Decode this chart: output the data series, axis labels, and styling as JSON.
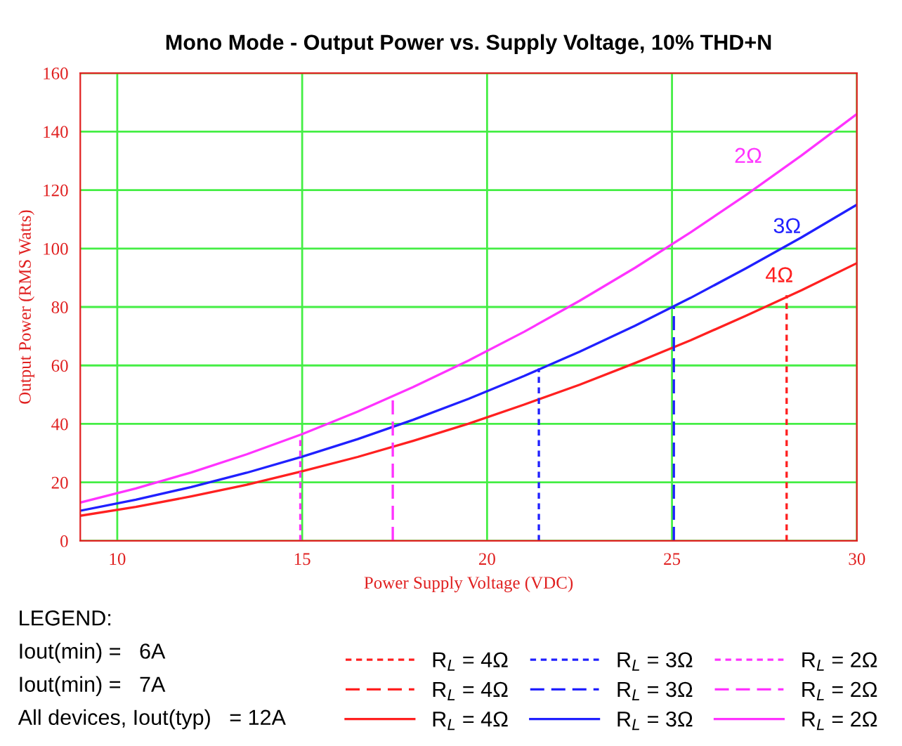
{
  "chart_data": {
    "type": "line",
    "title": "Mono Mode - Output Power vs. Supply Voltage, 10% THD+N",
    "xlabel": "Power Supply Voltage (VDC)",
    "ylabel": "Output Power (RMS Watts)",
    "xlim": [
      9,
      30
    ],
    "xticks": [
      10,
      15,
      20,
      25,
      30
    ],
    "ylim": [
      0,
      160
    ],
    "yticks": [
      0,
      20,
      40,
      60,
      80,
      100,
      120,
      140,
      160
    ],
    "grid": true,
    "legend": "bottom right",
    "marker": "none",
    "series": [
      {
        "name": "R$_{L}$ = 4Ω",
        "color": "#ff2020",
        "line_style": "dotted",
        "x": [
          28.1,
          28.1
        ],
        "values": [
          0,
          84
        ]
      },
      {
        "name": "R$_{L}$ = 4Ω",
        "color": "#ff2020",
        "line_style": "dashed"
      },
      {
        "name": "R$_{L}$ = 4Ω",
        "color": "#ff2020",
        "line_style": "solid",
        "x": [
          9,
          10.5,
          12,
          13.5,
          15,
          16.5,
          18,
          19.5,
          21,
          22.5,
          24,
          25.5,
          27,
          28.5,
          30
        ],
        "values": [
          8.6,
          11.6,
          15.2,
          19.2,
          23.8,
          28.7,
          34.2,
          40.1,
          46.6,
          53.4,
          60.8,
          68.6,
          77,
          85.7,
          95
        ]
      },
      {
        "name": "R$_{L}$ = 3Ω",
        "color": "#2020ff",
        "line_style": "dotted",
        "x": [
          21.4,
          21.4
        ],
        "values": [
          0,
          59
        ]
      },
      {
        "name": "R$_{L}$ = 3Ω",
        "color": "#2020ff",
        "line_style": "dashed",
        "x": [
          25.05,
          25.05
        ],
        "values": [
          0,
          80
        ]
      },
      {
        "name": "R$_{L}$ = 3Ω",
        "color": "#2020ff",
        "line_style": "solid",
        "x": [
          9,
          10.5,
          12,
          13.5,
          15,
          16.5,
          18,
          19.5,
          21,
          22.5,
          24,
          25.5,
          27,
          28.5,
          30
        ],
        "values": [
          10.3,
          14.1,
          18.4,
          23.3,
          28.8,
          34.8,
          41.4,
          48.6,
          56.4,
          64.7,
          73.6,
          83.1,
          93.2,
          103.8,
          115
        ]
      },
      {
        "name": "R$_{L}$ = 2Ω",
        "color": "#ff33ff",
        "line_style": "dotted",
        "x": [
          14.95,
          14.95
        ],
        "values": [
          0,
          36
        ]
      },
      {
        "name": "R$_{L}$ = 2Ω",
        "color": "#ff33ff",
        "line_style": "dashed",
        "x": [
          17.45,
          17.45
        ],
        "values": [
          0,
          49
        ]
      },
      {
        "name": "R$_{L}$ = 2Ω",
        "color": "#ff33ff",
        "line_style": "solid",
        "x": [
          9,
          10.5,
          12,
          13.5,
          15,
          16.5,
          18,
          19.5,
          21,
          22.5,
          24,
          25.5,
          27,
          28.5,
          30
        ],
        "values": [
          13.1,
          17.9,
          23.4,
          29.6,
          36.5,
          44.2,
          52.6,
          61.7,
          71.5,
          82.1,
          93.4,
          105.5,
          118.3,
          131.8,
          146
        ]
      }
    ],
    "annotations": [
      "2Ω",
      "3Ω",
      "4Ω",
      "LEGEND:",
      "Iout(min) =   6A",
      "Iout(min) =   7A",
      "All devices, Iout(typ)   = 12A"
    ]
  }
}
